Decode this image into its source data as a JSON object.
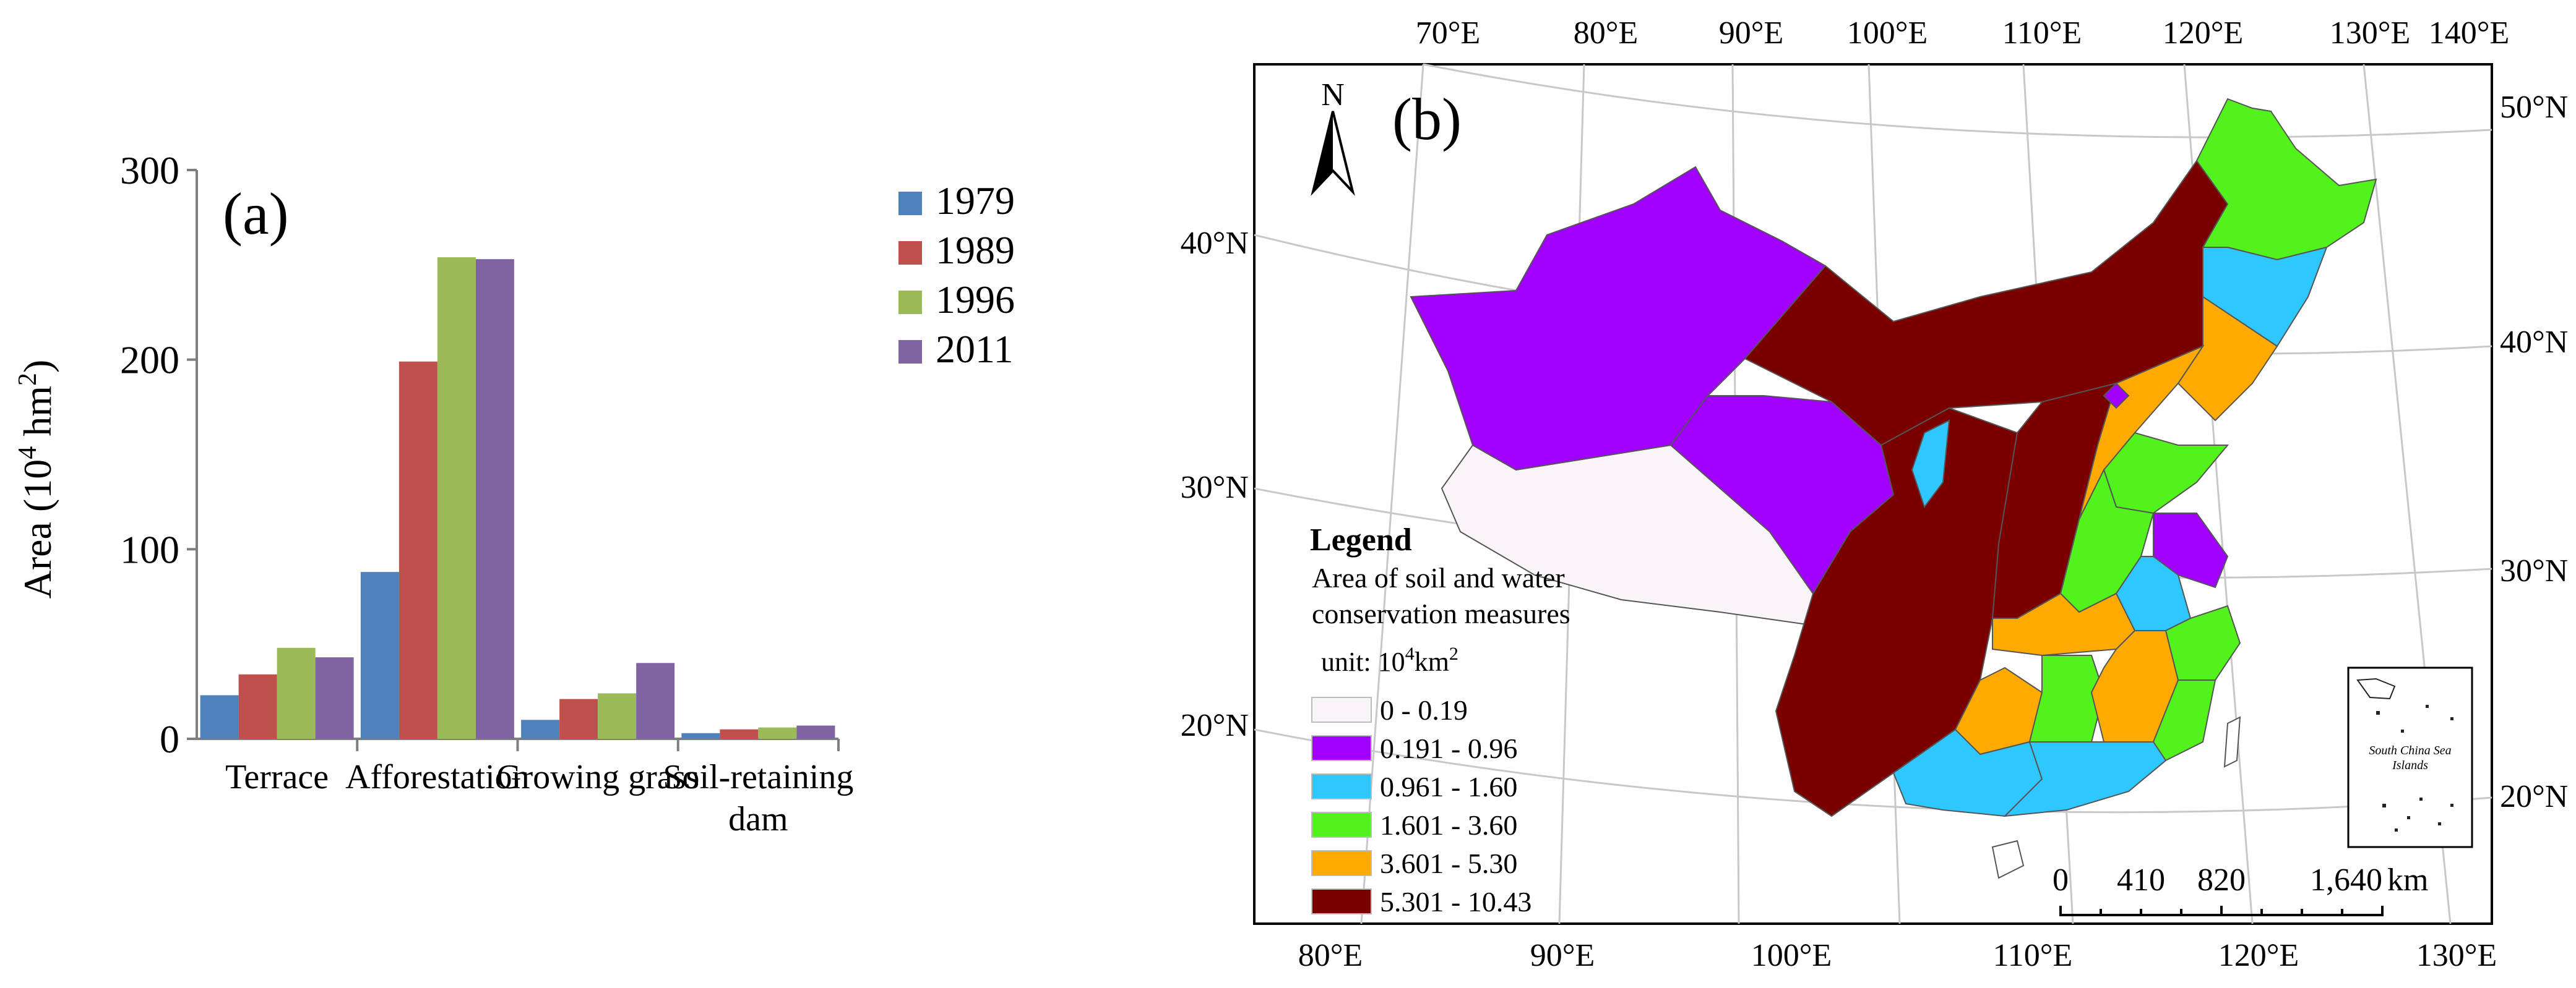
{
  "chart_data": [
    {
      "type": "bar",
      "panel_label": "(a)",
      "title": "",
      "xlabel": "",
      "ylabel_main": "Area (10",
      "ylabel_sup": "4",
      "ylabel_tail": " hm",
      "ylabel_sup2": "2",
      "ylabel_end": ")",
      "ylim": [
        0,
        300
      ],
      "yticks": [
        "0",
        "100",
        "200",
        "300"
      ],
      "categories": [
        {
          "line1": "Terrace",
          "line2": ""
        },
        {
          "line1": "Afforestation",
          "line2": ""
        },
        {
          "line1": "Growing grass",
          "line2": ""
        },
        {
          "line1": "Soil-retaining",
          "line2": "dam"
        }
      ],
      "series": [
        {
          "name": "1979",
          "color": "#4f81bd",
          "values": [
            23,
            88,
            10,
            3
          ]
        },
        {
          "name": "1989",
          "color": "#c0504d",
          "values": [
            34,
            199,
            21,
            5
          ]
        },
        {
          "name": "1996",
          "color": "#9bbb59",
          "values": [
            48,
            254,
            24,
            6
          ]
        },
        {
          "name": "2011",
          "color": "#8064a2",
          "values": [
            43,
            253,
            40,
            7
          ]
        }
      ],
      "legend_position": "top-right"
    },
    {
      "type": "map",
      "panel_label": "(b)",
      "north_label": "N",
      "top_lon_labels": [
        "70°E",
        "80°E",
        "90°E",
        "100°E",
        "110°E",
        "120°E",
        "130°E",
        "140°E"
      ],
      "bottom_lon_labels": [
        "80°E",
        "90°E",
        "100°E",
        "110°E",
        "120°E",
        "130°E"
      ],
      "left_lat_labels": [
        "40°N",
        "30°N",
        "20°N"
      ],
      "right_lat_labels": [
        "50°N",
        "40°N",
        "30°N",
        "20°N"
      ],
      "legend": {
        "title": "Legend",
        "subtitle_line1": "Area of soil and water",
        "subtitle_line2": "conservation measures",
        "unit_prefix": "unit: 10",
        "unit_sup": "4",
        "unit_mid": "km",
        "unit_sup2": "2",
        "classes": [
          {
            "label": "0 - 0.19",
            "color": "#f8f4f8"
          },
          {
            "label": "0.191 - 0.96",
            "color": "#a100ff"
          },
          {
            "label": "0.961 - 1.60",
            "color": "#2ec7ff"
          },
          {
            "label": "1.601 - 3.60",
            "color": "#52f21c"
          },
          {
            "label": "3.601 - 5.30",
            "color": "#ffaa00"
          },
          {
            "label": "5.301 - 10.43",
            "color": "#7a0000"
          }
        ]
      },
      "scale_bar": {
        "labels": [
          "0",
          "410",
          "820",
          "1,640"
        ],
        "unit": "km"
      },
      "inset_label_line1": "South China Sea",
      "inset_label_line2": "Islands"
    }
  ]
}
